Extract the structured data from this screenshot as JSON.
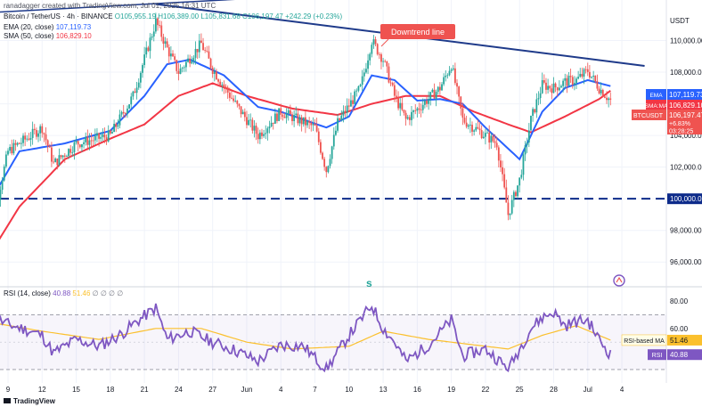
{
  "header": {
    "credit": "ranadagger created with TradingView.com, Jul 01, 2025 16:31 UTC",
    "symbol": "Bitcoin / TetherUS · 4h · BINANCE",
    "ohlc": "O105,955.19 H106,389.00 L105,831.68 C106,197.47 +242.29 (+0.23%)",
    "ema_legend": "EMA (20, close)",
    "ema_value": "107,119.73",
    "sma_legend": "SMA (50, close)",
    "sma_value": "106,829.10",
    "currency": "USDT",
    "rsi_legend": "RSI (14, close)",
    "rsi_value": "40.88",
    "rsi_ma_value": "51.46",
    "rsi_extra": "∅ ∅ ∅ ∅"
  },
  "annotation": "Downtrend line",
  "badges": {
    "ema_label": "EMA",
    "ema_value": "107,119.73",
    "sma_label": "SMA:MA",
    "sma_value": "106,829.10",
    "price_label": "BTCUSDT",
    "price_value": "106,197.47",
    "price_change": "+6.83%",
    "countdown": "03:28:25",
    "rsi_ma_label": "RSI-based MA",
    "rsi_ma_value": "51.46",
    "rsi_label": "RSI",
    "rsi_value": "40.88"
  },
  "footer": {
    "brand": "TradingView"
  },
  "colors": {
    "up": "#26a69a",
    "down": "#ef5350",
    "ema": "#2962ff",
    "sma": "#f23645",
    "rsi": "#7e57c2",
    "rsi_ma": "#fbc02d",
    "trend": "#1e3a8a",
    "support": "#0d2b8a"
  },
  "chart_data": {
    "type": "candlestick",
    "price_axis": {
      "ticks": [
        96000,
        98000,
        100000,
        102000,
        104000,
        106000,
        108000,
        110000
      ],
      "ylim": [
        95000,
        112000
      ]
    },
    "x_ticks": [
      "9",
      "12",
      "15",
      "18",
      "21",
      "24",
      "27",
      "Jun",
      "4",
      "7",
      "10",
      "13",
      "16",
      "19",
      "22",
      "25",
      "28",
      "Jul",
      "4"
    ],
    "support_level": 100000,
    "downtrend_line": {
      "from": {
        "date": "May 22",
        "value": 112300
      },
      "to": {
        "date": "Jul 04",
        "value": 108400
      }
    },
    "close_waypoints": [
      {
        "date": "May 7",
        "close": 96500
      },
      {
        "date": "May 9",
        "close": 103000
      },
      {
        "date": "May 12",
        "close": 104500
      },
      {
        "date": "May 13",
        "close": 102200
      },
      {
        "date": "May 15",
        "close": 103500
      },
      {
        "date": "May 18",
        "close": 104000
      },
      {
        "date": "May 20",
        "close": 106500
      },
      {
        "date": "May 22",
        "close": 111200
      },
      {
        "date": "May 23",
        "close": 109500
      },
      {
        "date": "May 24",
        "close": 108000
      },
      {
        "date": "May 26",
        "close": 109800
      },
      {
        "date": "May 27",
        "close": 108200
      },
      {
        "date": "May 29",
        "close": 106000
      },
      {
        "date": "May 31",
        "close": 104000
      },
      {
        "date": "Jun 2",
        "close": 105500
      },
      {
        "date": "Jun 5",
        "close": 104500
      },
      {
        "date": "Jun 6",
        "close": 101800
      },
      {
        "date": "Jun 7",
        "close": 104800
      },
      {
        "date": "Jun 9",
        "close": 107000
      },
      {
        "date": "Jun 10",
        "close": 110000
      },
      {
        "date": "Jun 11",
        "close": 108800
      },
      {
        "date": "Jun 12",
        "close": 106500
      },
      {
        "date": "Jun 13",
        "close": 105000
      },
      {
        "date": "Jun 16",
        "close": 107000
      },
      {
        "date": "Jun 17",
        "close": 108500
      },
      {
        "date": "Jun 18",
        "close": 105000
      },
      {
        "date": "Jun 19",
        "close": 104500
      },
      {
        "date": "Jun 21",
        "close": 103500
      },
      {
        "date": "Jun 22",
        "close": 99000
      },
      {
        "date": "Jun 23",
        "close": 101200
      },
      {
        "date": "Jun 24",
        "close": 105000
      },
      {
        "date": "Jun 25",
        "close": 107200
      },
      {
        "date": "Jun 26",
        "close": 107000
      },
      {
        "date": "Jun 27",
        "close": 107400
      },
      {
        "date": "Jun 28",
        "close": 107500
      },
      {
        "date": "Jun 29",
        "close": 108100
      },
      {
        "date": "Jun 30",
        "close": 107000
      },
      {
        "date": "Jul 1",
        "close": 106197
      }
    ],
    "ema20": [
      {
        "date": "May 7",
        "v": 99300
      },
      {
        "date": "May 10",
        "v": 103000
      },
      {
        "date": "May 14",
        "v": 103500
      },
      {
        "date": "May 18",
        "v": 104300
      },
      {
        "date": "May 21",
        "v": 106500
      },
      {
        "date": "May 23",
        "v": 108500
      },
      {
        "date": "May 25",
        "v": 108800
      },
      {
        "date": "May 28",
        "v": 107800
      },
      {
        "date": "May 31",
        "v": 105800
      },
      {
        "date": "Jun 2",
        "v": 105500
      },
      {
        "date": "Jun 6",
        "v": 104500
      },
      {
        "date": "Jun 8",
        "v": 105200
      },
      {
        "date": "Jun 10",
        "v": 107800
      },
      {
        "date": "Jun 12",
        "v": 107500
      },
      {
        "date": "Jun 14",
        "v": 106200
      },
      {
        "date": "Jun 16",
        "v": 106300
      },
      {
        "date": "Jun 18",
        "v": 106000
      },
      {
        "date": "Jun 20",
        "v": 104500
      },
      {
        "date": "Jun 23",
        "v": 102500
      },
      {
        "date": "Jun 25",
        "v": 105500
      },
      {
        "date": "Jun 27",
        "v": 107000
      },
      {
        "date": "Jun 29",
        "v": 107500
      },
      {
        "date": "Jul 1",
        "v": 107120
      }
    ],
    "sma50": [
      {
        "date": "May 7",
        "v": 96000
      },
      {
        "date": "May 10",
        "v": 99500
      },
      {
        "date": "May 14",
        "v": 102500
      },
      {
        "date": "May 18",
        "v": 103800
      },
      {
        "date": "May 21",
        "v": 104700
      },
      {
        "date": "May 24",
        "v": 106500
      },
      {
        "date": "May 27",
        "v": 107300
      },
      {
        "date": "May 30",
        "v": 106500
      },
      {
        "date": "Jun 3",
        "v": 105700
      },
      {
        "date": "Jun 7",
        "v": 105300
      },
      {
        "date": "Jun 10",
        "v": 106000
      },
      {
        "date": "Jun 13",
        "v": 106500
      },
      {
        "date": "Jun 16",
        "v": 106500
      },
      {
        "date": "Jun 19",
        "v": 105500
      },
      {
        "date": "Jun 22",
        "v": 104700
      },
      {
        "date": "Jun 24",
        "v": 104200
      },
      {
        "date": "Jun 27",
        "v": 105200
      },
      {
        "date": "Jun 30",
        "v": 106300
      },
      {
        "date": "Jul 1",
        "v": 106830
      }
    ],
    "rsi": {
      "ticks": [
        40,
        60,
        80
      ],
      "ylim": [
        28,
        82
      ],
      "bands": [
        30,
        70
      ],
      "values": [
        {
          "date": "May 7",
          "v": 70
        },
        {
          "date": "May 9",
          "v": 63
        },
        {
          "date": "May 11",
          "v": 58
        },
        {
          "date": "May 12",
          "v": 55
        },
        {
          "date": "May 13",
          "v": 42
        },
        {
          "date": "May 15",
          "v": 52
        },
        {
          "date": "May 17",
          "v": 47
        },
        {
          "date": "May 19",
          "v": 56
        },
        {
          "date": "May 20",
          "v": 63
        },
        {
          "date": "May 22",
          "v": 75
        },
        {
          "date": "May 23",
          "v": 52
        },
        {
          "date": "May 25",
          "v": 58
        },
        {
          "date": "May 27",
          "v": 50
        },
        {
          "date": "May 29",
          "v": 44
        },
        {
          "date": "May 31",
          "v": 36
        },
        {
          "date": "Jun 2",
          "v": 48
        },
        {
          "date": "Jun 4",
          "v": 47
        },
        {
          "date": "Jun 6",
          "v": 30
        },
        {
          "date": "Jun 8",
          "v": 55
        },
        {
          "date": "Jun 10",
          "v": 77
        },
        {
          "date": "Jun 11",
          "v": 60
        },
        {
          "date": "Jun 12",
          "v": 50
        },
        {
          "date": "Jun 13",
          "v": 36
        },
        {
          "date": "Jun 15",
          "v": 48
        },
        {
          "date": "Jun 17",
          "v": 66
        },
        {
          "date": "Jun 18",
          "v": 40
        },
        {
          "date": "Jun 20",
          "v": 45
        },
        {
          "date": "Jun 21",
          "v": 38
        },
        {
          "date": "Jun 22",
          "v": 30
        },
        {
          "date": "Jun 24",
          "v": 60
        },
        {
          "date": "Jun 25",
          "v": 68
        },
        {
          "date": "Jun 26",
          "v": 72
        },
        {
          "date": "Jun 27",
          "v": 62
        },
        {
          "date": "Jun 28",
          "v": 65
        },
        {
          "date": "Jun 29",
          "v": 66
        },
        {
          "date": "Jun 30",
          "v": 52
        },
        {
          "date": "Jul 1",
          "v": 40.88
        }
      ],
      "ma_values": [
        {
          "date": "May 7",
          "v": 65
        },
        {
          "date": "May 12",
          "v": 58
        },
        {
          "date": "May 17",
          "v": 52
        },
        {
          "date": "May 22",
          "v": 60
        },
        {
          "date": "May 26",
          "v": 60
        },
        {
          "date": "May 30",
          "v": 50
        },
        {
          "date": "Jun 3",
          "v": 45
        },
        {
          "date": "Jun 8",
          "v": 47
        },
        {
          "date": "Jun 11",
          "v": 58
        },
        {
          "date": "Jun 15",
          "v": 52
        },
        {
          "date": "Jun 19",
          "v": 48
        },
        {
          "date": "Jun 22",
          "v": 45
        },
        {
          "date": "Jun 25",
          "v": 55
        },
        {
          "date": "Jun 28",
          "v": 62
        },
        {
          "date": "Jul 1",
          "v": 51.46
        }
      ]
    }
  }
}
